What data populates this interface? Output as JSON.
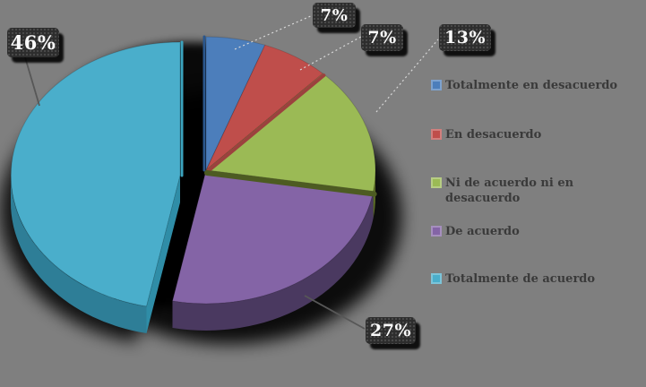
{
  "background_color": "#7F7F7F",
  "chart_data": {
    "type": "pie",
    "style": "3d-exploded-pie",
    "title": "",
    "categories": [
      "Totalmente en desacuerdo",
      "En desacuerdo",
      "Ni de acuerdo ni en desacuerdo",
      "De acuerdo",
      "Totalmente de acuerdo"
    ],
    "values": [
      7,
      7,
      13,
      27,
      46
    ],
    "unit": "%",
    "data_labels": [
      "7%",
      "7%",
      "13%",
      "27%",
      "46%"
    ],
    "slice_colors": [
      "#4C7EBB",
      "#BF4E4B",
      "#9BBA55",
      "#8464A6",
      "#4AAECB"
    ],
    "slice_side_colors": [
      "#2A568C",
      "#943B38",
      "#5A6B24",
      "#4A3960",
      "#2E7E97"
    ],
    "exploded_slice_index": 4,
    "start_angle": "12 o'clock",
    "direction": "clockwise",
    "legend_position": "right",
    "label_box_color": "#2D2D2D",
    "label_text_color": "#FAFAFA"
  },
  "legend": {
    "text_color": "#3A3A3A",
    "items": [
      {
        "label": "Totalmente en desacuerdo",
        "color": "#4C7EBB"
      },
      {
        "label": "En desacuerdo",
        "color": "#BF4E4B"
      },
      {
        "label": "Ni de acuerdo ni en\ndesacuerdo",
        "color": "#9BBA55"
      },
      {
        "label": "De acuerdo",
        "color": "#8464A6"
      },
      {
        "label": "Totalmente de acuerdo",
        "color": "#4AAECB"
      }
    ]
  }
}
